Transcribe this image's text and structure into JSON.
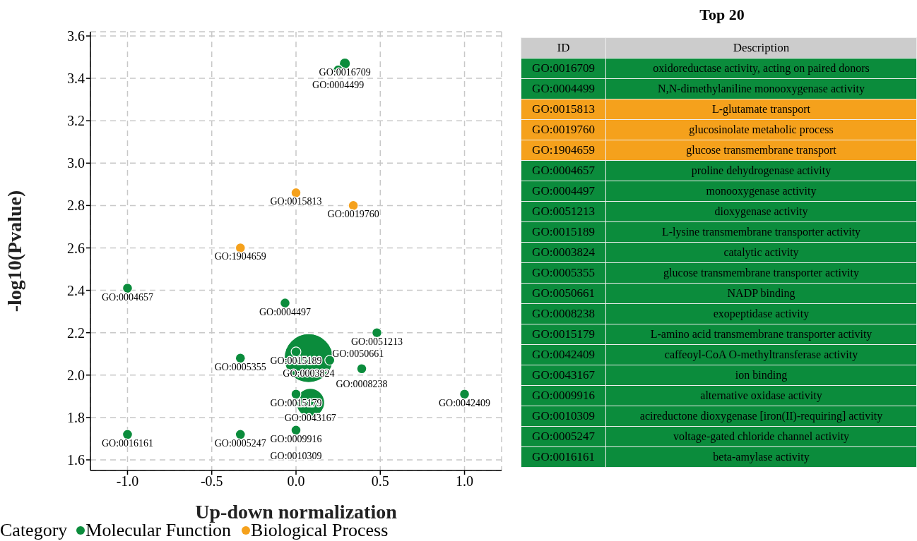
{
  "chart_data": [
    {
      "type": "bubble",
      "xlabel": "Up-down normalization",
      "ylabel": "-log10(Pvalue)",
      "legend_title": "Category",
      "legend": "bottom left",
      "grid": true,
      "xlim": [
        -1.22,
        1.22
      ],
      "ylim": [
        1.55,
        3.62
      ],
      "xticks": [
        {
          "value": -1,
          "label": "-1.0"
        },
        {
          "value": -0.5,
          "label": "-0.5"
        },
        {
          "value": 0,
          "label": "0.0"
        },
        {
          "value": 0.5,
          "label": "0.5"
        },
        {
          "value": 1,
          "label": "1.0"
        }
      ],
      "yticks": [
        {
          "value": 1.6,
          "label": "1.6"
        },
        {
          "value": 1.8,
          "label": "1.8"
        },
        {
          "value": 2,
          "label": "2.0"
        },
        {
          "value": 2.2,
          "label": "2.2"
        },
        {
          "value": 2.4,
          "label": "2.4"
        },
        {
          "value": 2.6,
          "label": "2.6"
        },
        {
          "value": 2.8,
          "label": "2.8"
        },
        {
          "value": 3,
          "label": "3.0"
        },
        {
          "value": 3.2,
          "label": "3.2"
        },
        {
          "value": 3.4,
          "label": "3.4"
        },
        {
          "value": 3.6,
          "label": "3.6"
        }
      ],
      "series": [
        {
          "name": "Molecular Function",
          "color": "#0b8c3c",
          "x": [
            0.075,
            0.085,
            0.29,
            0.25,
            -1.0,
            -0.065,
            0.48,
            0.0,
            -0.33,
            0.2,
            0.39,
            0.0,
            1.0,
            0.0,
            -0.33,
            -1.0
          ],
          "values": [
            2.08,
            1.87,
            3.47,
            3.44,
            2.41,
            2.34,
            2.2,
            2.11,
            2.08,
            2.07,
            2.03,
            1.91,
            1.91,
            1.74,
            1.72,
            1.72
          ],
          "sizes": [
            1,
            0.34,
            0.05,
            0.04,
            0.04,
            0.04,
            0.04,
            0.04,
            0.04,
            0.04,
            0.04,
            0.04,
            0.04,
            0.04,
            0.04,
            0.04
          ]
        },
        {
          "name": "Biological Process",
          "color": "#f5a11c",
          "x": [
            0.0,
            0.34,
            -0.33
          ],
          "values": [
            2.86,
            2.8,
            2.6
          ],
          "sizes": [
            0.04,
            0.04,
            0.04
          ]
        }
      ],
      "annotations": [
        {
          "text": "GO:0016709",
          "x": 0.29,
          "y": 3.47
        },
        {
          "text": "GO:0004499",
          "x": 0.25,
          "y": 3.44
        },
        {
          "text": "GO:0015813",
          "x": 0.0,
          "y": 2.86
        },
        {
          "text": "GO:0019760",
          "x": 0.34,
          "y": 2.8
        },
        {
          "text": "GO:1904659",
          "x": -0.33,
          "y": 2.6
        },
        {
          "text": "GO:0004657",
          "x": -1.0,
          "y": 2.41
        },
        {
          "text": "GO:0004497",
          "x": -0.065,
          "y": 2.34
        },
        {
          "text": "GO:0051213",
          "x": 0.48,
          "y": 2.2
        },
        {
          "text": "GO:0015189",
          "x": 0.0,
          "y": 2.11
        },
        {
          "text": "GO:0003824",
          "x": 0.075,
          "y": 2.08
        },
        {
          "text": "GO:0005355",
          "x": -0.33,
          "y": 2.08
        },
        {
          "text": "GO:0050661",
          "x": 0.2,
          "y": 2.07
        },
        {
          "text": "GO:0008238",
          "x": 0.39,
          "y": 2.03
        },
        {
          "text": "GO:0015179",
          "x": 0.0,
          "y": 1.91
        },
        {
          "text": "GO:0042409",
          "x": 1.0,
          "y": 1.91
        },
        {
          "text": "GO:0043167",
          "x": 0.085,
          "y": 1.87
        },
        {
          "text": "GO:0009916",
          "x": 0.0,
          "y": 1.74
        },
        {
          "text": "GO:0010309",
          "x": 0.0,
          "y": 1.74
        },
        {
          "text": "GO:0005247",
          "x": -0.33,
          "y": 1.72
        },
        {
          "text": "GO:0016161",
          "x": -1.0,
          "y": 1.72
        }
      ]
    },
    {
      "type": "other",
      "title": "Top 20",
      "categories": [
        "ID",
        "Description"
      ],
      "cell_labels": [
        [
          "GO:0016709",
          "oxidoreductase activity, acting on paired donors"
        ],
        [
          "GO:0004499",
          "N,N-dimethylaniline monooxygenase activity"
        ],
        [
          "GO:0015813",
          "L-glutamate transport"
        ],
        [
          "GO:0019760",
          "glucosinolate metabolic process"
        ],
        [
          "GO:1904659",
          "glucose transmembrane transport"
        ],
        [
          "GO:0004657",
          "proline dehydrogenase activity"
        ],
        [
          "GO:0004497",
          "monooxygenase activity"
        ],
        [
          "GO:0051213",
          "dioxygenase activity"
        ],
        [
          "GO:0015189",
          "L-lysine transmembrane transporter activity"
        ],
        [
          "GO:0003824",
          "catalytic activity"
        ],
        [
          "GO:0005355",
          "glucose transmembrane transporter activity"
        ],
        [
          "GO:0050661",
          "NADP binding"
        ],
        [
          "GO:0008238",
          "exopeptidase activity"
        ],
        [
          "GO:0015179",
          "L-amino acid transmembrane transporter activity"
        ],
        [
          "GO:0042409",
          "caffeoyl-CoA O-methyltransferase activity"
        ],
        [
          "GO:0043167",
          "ion binding"
        ],
        [
          "GO:0009916",
          "alternative oxidase activity"
        ],
        [
          "GO:0010309",
          "acireductone dioxygenase [iron(II)-requiring] activity"
        ],
        [
          "GO:0005247",
          "voltage-gated chloride channel activity"
        ],
        [
          "GO:0016161",
          "beta-amylase activity"
        ]
      ],
      "colors": [
        "#cccccc",
        "#0b8c3c",
        "#0b8c3c",
        "#f5a11c",
        "#f5a11c",
        "#f5a11c",
        "#0b8c3c",
        "#0b8c3c",
        "#0b8c3c",
        "#0b8c3c",
        "#0b8c3c",
        "#0b8c3c",
        "#0b8c3c",
        "#0b8c3c",
        "#0b8c3c",
        "#0b8c3c",
        "#0b8c3c",
        "#0b8c3c",
        "#0b8c3c",
        "#0b8c3c",
        "#0b8c3c"
      ]
    }
  ]
}
